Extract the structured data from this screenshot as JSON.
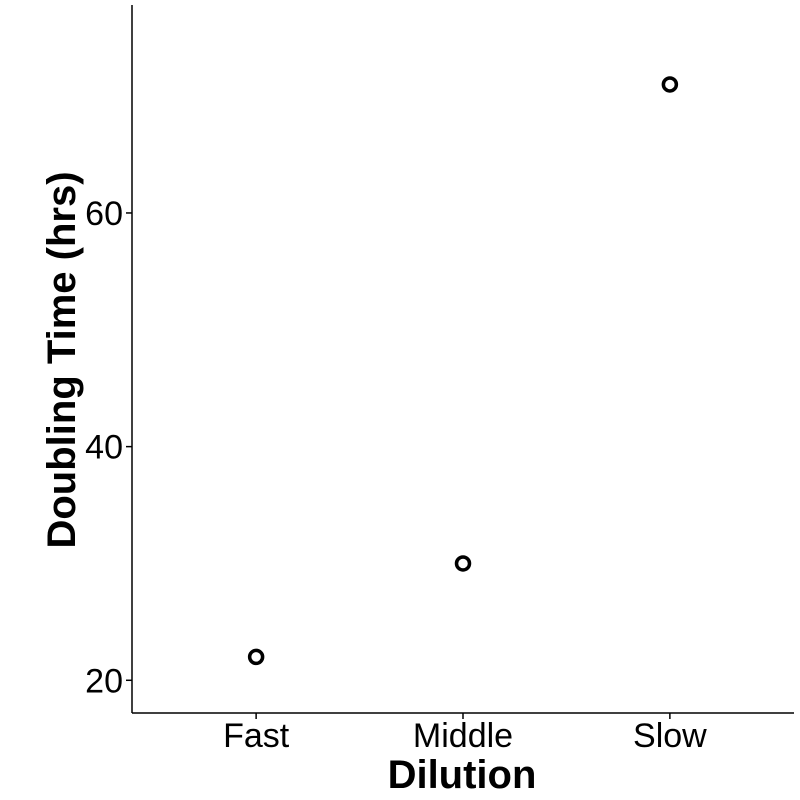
{
  "chart_data": {
    "type": "scatter",
    "title": "",
    "xlabel": "Dilution",
    "ylabel": "Doubling Time (hrs)",
    "categories": [
      "Fast",
      "Middle",
      "Slow"
    ],
    "values": [
      22,
      30,
      71
    ],
    "ylim": [
      17.2,
      77.8
    ],
    "yticks": [
      20,
      40,
      60
    ],
    "ytick_labels": [
      "20",
      "40",
      "60"
    ],
    "grid": false,
    "legend": "none",
    "marker": "open-circle",
    "colors": {
      "point": "#000000",
      "axis": "#000000",
      "background": "#ffffff"
    }
  }
}
